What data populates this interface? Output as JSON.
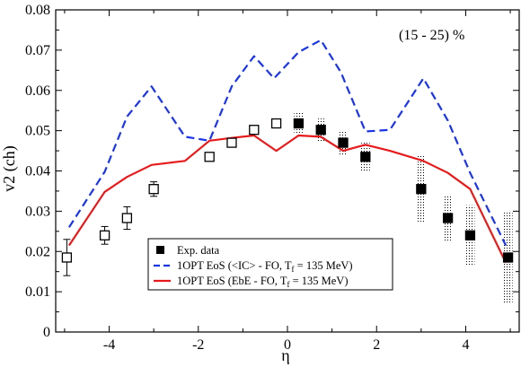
{
  "chart_data": {
    "type": "scatter",
    "annotation": "(15 - 25) %",
    "xlabel": "η",
    "ylabel": "v2 (ch)",
    "xlim": [
      -5.2,
      5.2
    ],
    "ylim": [
      0,
      0.08
    ],
    "grid": false,
    "legend_position": "lower-center",
    "x_ticks": [
      -4,
      -2,
      0,
      2,
      4
    ],
    "x_tick_labels": [
      "-4",
      "-2",
      "0",
      "2",
      "4"
    ],
    "y_ticks": [
      0,
      0.01,
      0.02,
      0.03,
      0.04,
      0.05,
      0.06,
      0.07,
      0.08
    ],
    "y_tick_labels": [
      "0",
      "0.01",
      "0.02",
      "0.03",
      "0.04",
      "0.05",
      "0.06",
      "0.07",
      "0.08"
    ],
    "data_points": {
      "name": "Exp. data",
      "color": "#000000",
      "points": [
        {
          "x": -4.95,
          "y": 0.0185,
          "err": 0.0045,
          "filled": false
        },
        {
          "x": -4.1,
          "y": 0.024,
          "err": 0.0022,
          "filled": false
        },
        {
          "x": -3.6,
          "y": 0.0283,
          "err": 0.0028,
          "filled": false
        },
        {
          "x": -3.0,
          "y": 0.0355,
          "err": 0.0018,
          "filled": false
        },
        {
          "x": -1.75,
          "y": 0.0435,
          "err": 0.0008,
          "filled": false
        },
        {
          "x": -1.25,
          "y": 0.047,
          "err": 0.0008,
          "filled": false
        },
        {
          "x": -0.75,
          "y": 0.0502,
          "err": 0.0008,
          "filled": false
        },
        {
          "x": -0.25,
          "y": 0.0518,
          "err": 0.0008,
          "filled": false
        },
        {
          "x": 0.25,
          "y": 0.0518,
          "err": 0.0028,
          "filled": true
        },
        {
          "x": 0.75,
          "y": 0.0502,
          "err": 0.0028,
          "filled": true
        },
        {
          "x": 1.25,
          "y": 0.047,
          "err": 0.003,
          "filled": true
        },
        {
          "x": 1.75,
          "y": 0.0435,
          "err": 0.0035,
          "filled": true
        },
        {
          "x": 3.0,
          "y": 0.0355,
          "err": 0.0085,
          "filled": true
        },
        {
          "x": 3.6,
          "y": 0.0283,
          "err": 0.0058,
          "filled": true
        },
        {
          "x": 4.1,
          "y": 0.024,
          "err": 0.0075,
          "filled": true
        },
        {
          "x": 4.95,
          "y": 0.0185,
          "err": 0.0115,
          "filled": true
        }
      ]
    },
    "series": [
      {
        "name": "1OPT EoS (<IC> - FO, T",
        "name_sub": "f",
        "name_tail": " = 135 MeV)",
        "color": "#1a35e8",
        "style": "dashed",
        "x": [
          -4.9,
          -4.1,
          -3.6,
          -3.05,
          -2.3,
          -1.75,
          -1.25,
          -0.75,
          -0.3,
          0.25,
          0.75,
          1.2,
          1.75,
          2.3,
          3.05,
          3.6,
          4.1,
          4.9
        ],
        "y": [
          0.026,
          0.0398,
          0.0535,
          0.061,
          0.0485,
          0.0475,
          0.061,
          0.0685,
          0.063,
          0.0695,
          0.0725,
          0.0645,
          0.0498,
          0.0502,
          0.063,
          0.0525,
          0.0395,
          0.0215
        ]
      },
      {
        "name": "1OPT EoS (EbE - FO, T",
        "name_sub": "f",
        "name_tail": " = 135 MeV)",
        "color": "#e8191b",
        "style": "solid",
        "x": [
          -4.9,
          -4.1,
          -3.6,
          -3.05,
          -2.3,
          -1.75,
          -1.25,
          -0.75,
          -0.25,
          0.25,
          0.75,
          1.25,
          1.75,
          2.3,
          3.05,
          3.6,
          4.1,
          4.9
        ],
        "y": [
          0.0215,
          0.0348,
          0.0385,
          0.0415,
          0.0425,
          0.0475,
          0.0482,
          0.0488,
          0.045,
          0.0488,
          0.0485,
          0.045,
          0.0465,
          0.045,
          0.0425,
          0.0395,
          0.0355,
          0.0172
        ]
      }
    ]
  }
}
